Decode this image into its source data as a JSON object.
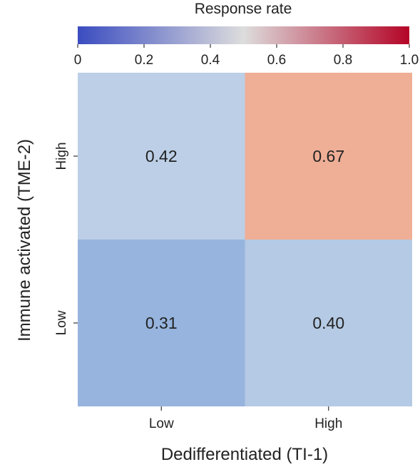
{
  "chart_data": {
    "type": "heatmap",
    "title": "",
    "xlabel": "Dedifferentiated (TI-1)",
    "ylabel": "Immune activated (TME-2)",
    "x_categories": [
      "Low",
      "High"
    ],
    "y_categories": [
      "High",
      "Low"
    ],
    "values": [
      [
        0.42,
        0.67
      ],
      [
        0.31,
        0.4
      ]
    ],
    "value_labels": [
      [
        "0.42",
        "0.67"
      ],
      [
        "0.31",
        "0.40"
      ]
    ],
    "colorbar": {
      "title": "Response rate",
      "range": [
        0,
        1.0
      ],
      "ticks": [
        "0",
        "0.2",
        "0.4",
        "0.6",
        "0.8",
        "1.0"
      ],
      "colormap": "coolwarm",
      "color_stops": [
        "#3b4cc0",
        "#8db0fe",
        "#dddddd",
        "#f49a7b",
        "#b40426"
      ]
    }
  }
}
